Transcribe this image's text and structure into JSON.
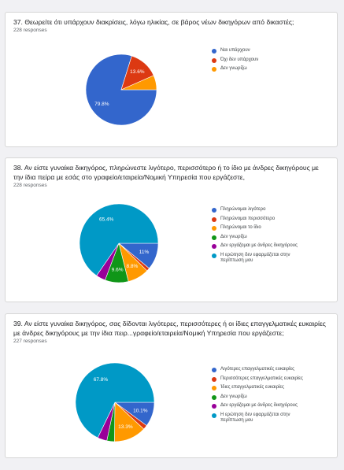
{
  "chart_data": [
    {
      "type": "pie",
      "title": "37. Θεωρείτε ότι υπάρχουν διακρίσεις, λόγω ηλικίας, σε βάρος νέων δικηγόρων από δικαστές;",
      "subtitle": "228 responses",
      "categories": [
        "Ναι υπάρχουν",
        "Όχι δεν υπάρχουν",
        "Δεν γνωρίζω"
      ],
      "values": [
        79.8,
        13.6,
        6.6
      ],
      "value_labels": [
        "79.8%",
        "13.6%",
        null
      ],
      "colors": [
        "#3366cc",
        "#dc3912",
        "#ff9900"
      ]
    },
    {
      "type": "pie",
      "title": "38. Αν είστε γυναίκα δικηγόρος, πληρώνεστε λιγότερο, περισσότερο ή το ίδιο με άνδρες δικηγόρους με την ίδια πείρα με εσάς στο γραφείο/εταιρεία/Νομική Υπηρεσία που εργάζεστε,",
      "subtitle": "228 responses",
      "categories": [
        "Πληρώνομαι λιγότερο",
        "Πληρώνομαι περισσότερο",
        "Πληρώνομαι το ίδιο",
        "Δεν γνωρίζω",
        "Δεν εργάζομαι με άνδρες δικηγόρους",
        "Η ερώτηση δεν εφαρμόζεται στην περίπτωση μου"
      ],
      "values": [
        11,
        1.3,
        8.8,
        9.6,
        3.9,
        65.4
      ],
      "value_labels": [
        "11%",
        null,
        "8.8%",
        "9.6%",
        null,
        "65.4%"
      ],
      "colors": [
        "#3366cc",
        "#dc3912",
        "#ff9900",
        "#109618",
        "#990099",
        "#0099c6"
      ]
    },
    {
      "type": "pie",
      "title": "39. Αν είστε γυναίκα δικηγόρος, σας δίδονται λιγότερες, περισσότερες ή οι ίδιες επαγγελματικές ευκαιρίες με άνδρες δικηγόρους με την ίδια πειρ...γραφείο/εταιρεία/Νομική Υπηρεσία που εργάζεστε;",
      "subtitle": "227 responses",
      "categories": [
        "Λιγότερες επαγγελματικές ευκαιρίες",
        "Περισσότερες επαγγελματικές ευκαιρίες",
        "Ίδιες επαγγελματικές ευκαιρίες",
        "Δεν γνωρίζω",
        "Δεν εργάζομαι με άνδρες δικηγόρους",
        "Η ερώτηση δεν εφαρμόζεται στην περίπτωση μου"
      ],
      "values": [
        10.1,
        1.8,
        13.3,
        3.1,
        3.9,
        67.8
      ],
      "value_labels": [
        "10.1%",
        null,
        "13.3%",
        null,
        null,
        "67.8%"
      ],
      "colors": [
        "#3366cc",
        "#dc3912",
        "#ff9900",
        "#109618",
        "#990099",
        "#0099c6"
      ]
    }
  ]
}
